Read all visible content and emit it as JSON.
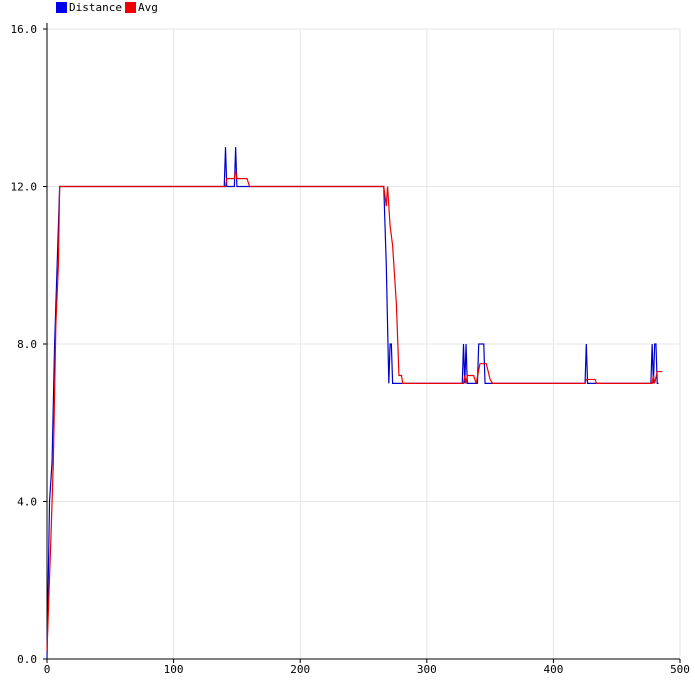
{
  "chart_data": {
    "type": "line",
    "xlim": [
      0,
      500
    ],
    "ylim": [
      0,
      16
    ],
    "x_ticks": [
      0,
      100,
      200,
      300,
      400,
      500
    ],
    "y_ticks": [
      0,
      4,
      8,
      12,
      16
    ],
    "x_tick_labels": [
      "0",
      "100",
      "200",
      "300",
      "400",
      "500"
    ],
    "y_tick_labels": [
      "0.0",
      "4.0",
      "8.0",
      "12.0",
      "16.0"
    ],
    "grid": true,
    "legend_position": "top-left",
    "series": [
      {
        "name": "Distance",
        "color": "#0000cc",
        "points": [
          [
            0,
            0
          ],
          [
            2,
            4
          ],
          [
            4,
            5
          ],
          [
            6,
            8
          ],
          [
            8,
            10
          ],
          [
            10,
            12
          ],
          [
            140,
            12
          ],
          [
            141,
            13
          ],
          [
            142,
            12
          ],
          [
            148,
            12
          ],
          [
            149,
            13
          ],
          [
            150,
            12
          ],
          [
            266,
            12
          ],
          [
            268,
            10
          ],
          [
            270,
            7
          ],
          [
            271,
            8
          ],
          [
            272,
            8
          ],
          [
            273,
            7
          ],
          [
            328,
            7
          ],
          [
            329,
            8
          ],
          [
            330,
            7
          ],
          [
            331,
            8
          ],
          [
            332,
            7
          ],
          [
            340,
            7
          ],
          [
            341,
            8
          ],
          [
            345,
            8
          ],
          [
            346,
            7
          ],
          [
            425,
            7
          ],
          [
            426,
            8
          ],
          [
            427,
            7
          ],
          [
            477,
            7
          ],
          [
            478,
            8
          ],
          [
            479,
            7
          ],
          [
            480,
            8
          ],
          [
            481,
            8
          ],
          [
            482,
            7
          ],
          [
            483,
            7
          ]
        ]
      },
      {
        "name": "Avg",
        "color": "#ee0000",
        "points": [
          [
            0,
            0.2
          ],
          [
            3,
            3
          ],
          [
            5,
            5
          ],
          [
            7,
            8.5
          ],
          [
            9,
            10
          ],
          [
            10,
            12
          ],
          [
            141,
            12
          ],
          [
            142,
            12.2
          ],
          [
            148,
            12.2
          ],
          [
            149,
            12.4
          ],
          [
            150,
            12.2
          ],
          [
            158,
            12.2
          ],
          [
            160,
            12
          ],
          [
            266,
            12
          ],
          [
            268,
            11.5
          ],
          [
            269,
            12
          ],
          [
            271,
            11
          ],
          [
            273,
            10.5
          ],
          [
            276,
            9
          ],
          [
            278,
            7.2
          ],
          [
            280,
            7.2
          ],
          [
            281,
            7
          ],
          [
            329,
            7
          ],
          [
            330,
            7.2
          ],
          [
            331,
            7
          ],
          [
            332,
            7.2
          ],
          [
            337,
            7.2
          ],
          [
            339,
            7
          ],
          [
            342,
            7.5
          ],
          [
            347,
            7.5
          ],
          [
            350,
            7.1
          ],
          [
            352,
            7
          ],
          [
            425,
            7
          ],
          [
            426,
            7.1
          ],
          [
            433,
            7.1
          ],
          [
            434,
            7
          ],
          [
            478,
            7
          ],
          [
            479,
            7.2
          ],
          [
            480,
            7
          ],
          [
            482,
            7.3
          ],
          [
            486,
            7.3
          ]
        ]
      }
    ]
  }
}
